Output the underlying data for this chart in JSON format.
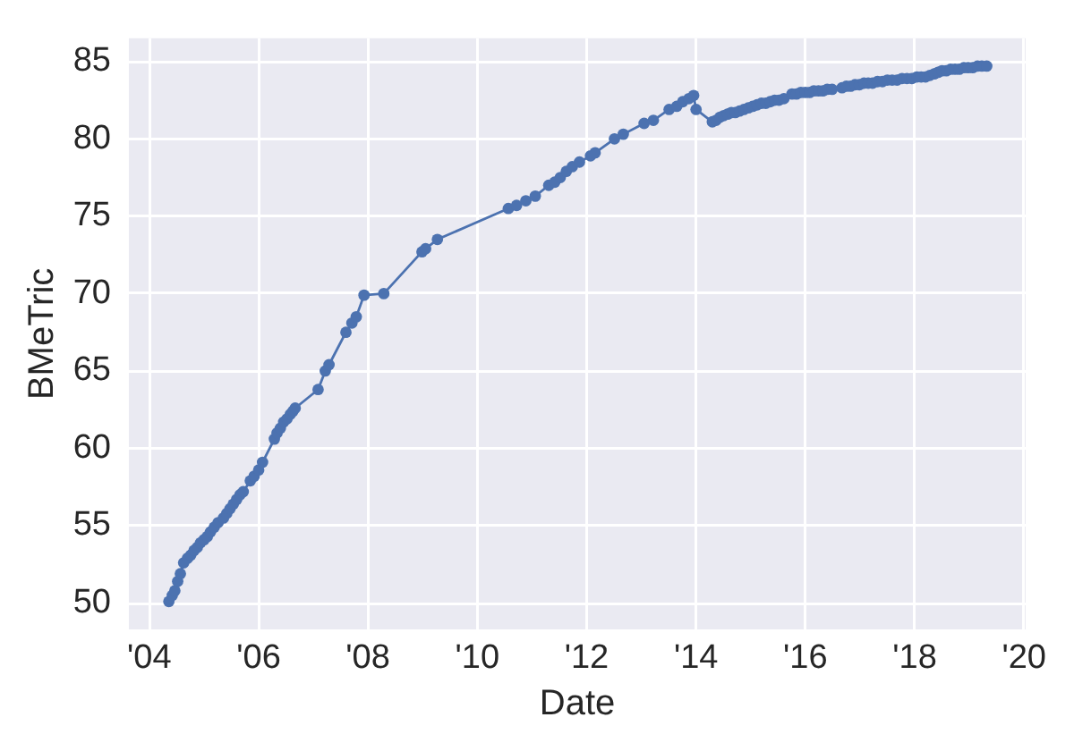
{
  "chart_data": {
    "type": "line",
    "xlabel": "Date",
    "ylabel": "BMeTric",
    "x": [
      "2004-05-11",
      "2004-06-03",
      "2004-06-20",
      "2004-07-09",
      "2004-07-27",
      "2004-08-18",
      "2004-09-13",
      "2004-10-04",
      "2004-10-26",
      "2004-11-17",
      "2004-12-09",
      "2005-01-01",
      "2005-01-23",
      "2005-02-13",
      "2005-03-10",
      "2005-04-05",
      "2005-05-11",
      "2005-06-02",
      "2005-06-24",
      "2005-07-16",
      "2005-08-07",
      "2005-08-29",
      "2005-09-20",
      "2005-11-06",
      "2005-12-02",
      "2006-01-01",
      "2006-01-27",
      "2006-04-16",
      "2006-05-04",
      "2006-05-26",
      "2006-06-17",
      "2006-07-09",
      "2006-07-31",
      "2006-08-18",
      "2006-09-02",
      "2007-02-02",
      "2007-03-22",
      "2007-04-16",
      "2007-08-07",
      "2007-09-16",
      "2007-10-15",
      "2007-12-06",
      "2008-04-16",
      "2008-12-27",
      "2009-01-20",
      "2009-04-09",
      "2010-07-27",
      "2010-09-20",
      "2010-11-21",
      "2011-01-23",
      "2011-04-23",
      "2011-06-02",
      "2011-07-09",
      "2011-08-18",
      "2011-09-27",
      "2011-11-14",
      "2012-01-27",
      "2012-02-27",
      "2012-07-05",
      "2012-09-02",
      "2013-01-19",
      "2013-03-22",
      "2013-07-05",
      "2013-08-25",
      "2013-10-04",
      "2013-11-14",
      "2013-12-16",
      "2014-01-01",
      "2014-04-20",
      "2014-05-15",
      "2014-06-10",
      "2014-07-05",
      "2014-07-31",
      "2014-08-25",
      "2014-09-20",
      "2014-10-19",
      "2014-11-17",
      "2014-12-16",
      "2015-01-15",
      "2015-02-13",
      "2015-03-14",
      "2015-04-12",
      "2015-05-11",
      "2015-06-10",
      "2015-07-09",
      "2015-08-11",
      "2015-10-04",
      "2015-11-03",
      "2015-12-02",
      "2016-01-01",
      "2016-01-30",
      "2016-02-27",
      "2016-03-29",
      "2016-04-27",
      "2016-05-26",
      "2016-06-28",
      "2016-09-02",
      "2016-10-01",
      "2016-10-30",
      "2016-11-28",
      "2016-12-27",
      "2017-01-27",
      "2017-02-24",
      "2017-03-25",
      "2017-04-27",
      "2017-05-30",
      "2017-07-02",
      "2017-08-03",
      "2017-09-05",
      "2017-10-08",
      "2017-11-10",
      "2017-12-13",
      "2018-01-15",
      "2018-02-13",
      "2018-03-14",
      "2018-04-12",
      "2018-05-11",
      "2018-06-06",
      "2018-07-02",
      "2018-07-31",
      "2018-08-29",
      "2018-09-27",
      "2018-10-26",
      "2018-11-25",
      "2018-12-24",
      "2019-01-23",
      "2019-02-24",
      "2019-03-25",
      "2019-04-27"
    ],
    "series": [
      {
        "color": "#4c72b0",
        "values": [
          50.1,
          50.5,
          50.8,
          51.4,
          51.9,
          52.6,
          52.9,
          53.1,
          53.4,
          53.6,
          53.9,
          54.1,
          54.3,
          54.6,
          54.9,
          55.2,
          55.5,
          55.8,
          56.1,
          56.4,
          56.7,
          57.0,
          57.2,
          57.9,
          58.2,
          58.6,
          59.1,
          60.6,
          61.0,
          61.3,
          61.7,
          61.9,
          62.2,
          62.4,
          62.6,
          63.8,
          65.0,
          65.4,
          67.5,
          68.1,
          68.5,
          69.9,
          70.0,
          72.7,
          72.9,
          73.5,
          75.5,
          75.7,
          76.0,
          76.3,
          77.0,
          77.2,
          77.5,
          77.9,
          78.2,
          78.5,
          78.9,
          79.1,
          80.0,
          80.3,
          81.0,
          81.2,
          81.9,
          82.1,
          82.4,
          82.6,
          82.8,
          81.9,
          81.1,
          81.2,
          81.4,
          81.5,
          81.6,
          81.7,
          81.7,
          81.8,
          81.9,
          82.0,
          82.1,
          82.2,
          82.3,
          82.3,
          82.4,
          82.5,
          82.5,
          82.6,
          82.9,
          82.9,
          83.0,
          83.0,
          83.0,
          83.1,
          83.1,
          83.1,
          83.2,
          83.2,
          83.3,
          83.4,
          83.4,
          83.5,
          83.5,
          83.6,
          83.6,
          83.6,
          83.7,
          83.7,
          83.8,
          83.8,
          83.8,
          83.9,
          83.9,
          83.9,
          84.0,
          84.0,
          84.0,
          84.1,
          84.2,
          84.3,
          84.4,
          84.4,
          84.5,
          84.5,
          84.5,
          84.6,
          84.6,
          84.6,
          84.7,
          84.7,
          84.7
        ]
      }
    ],
    "xlim": [
      "2003-08-18",
      "2020-01-12"
    ],
    "xticks": [
      {
        "value": "2004",
        "label": "'04"
      },
      {
        "value": "2006",
        "label": "'06"
      },
      {
        "value": "2008",
        "label": "'08"
      },
      {
        "value": "2010",
        "label": "'10"
      },
      {
        "value": "2012",
        "label": "'12"
      },
      {
        "value": "2014",
        "label": "'14"
      },
      {
        "value": "2016",
        "label": "'16"
      },
      {
        "value": "2018",
        "label": "'18"
      },
      {
        "value": "2020",
        "label": "'20"
      }
    ],
    "ylim": [
      48.3,
      86.5
    ],
    "yticks": [
      50,
      55,
      60,
      65,
      70,
      75,
      80,
      85
    ],
    "grid": true,
    "marker": "circle"
  }
}
